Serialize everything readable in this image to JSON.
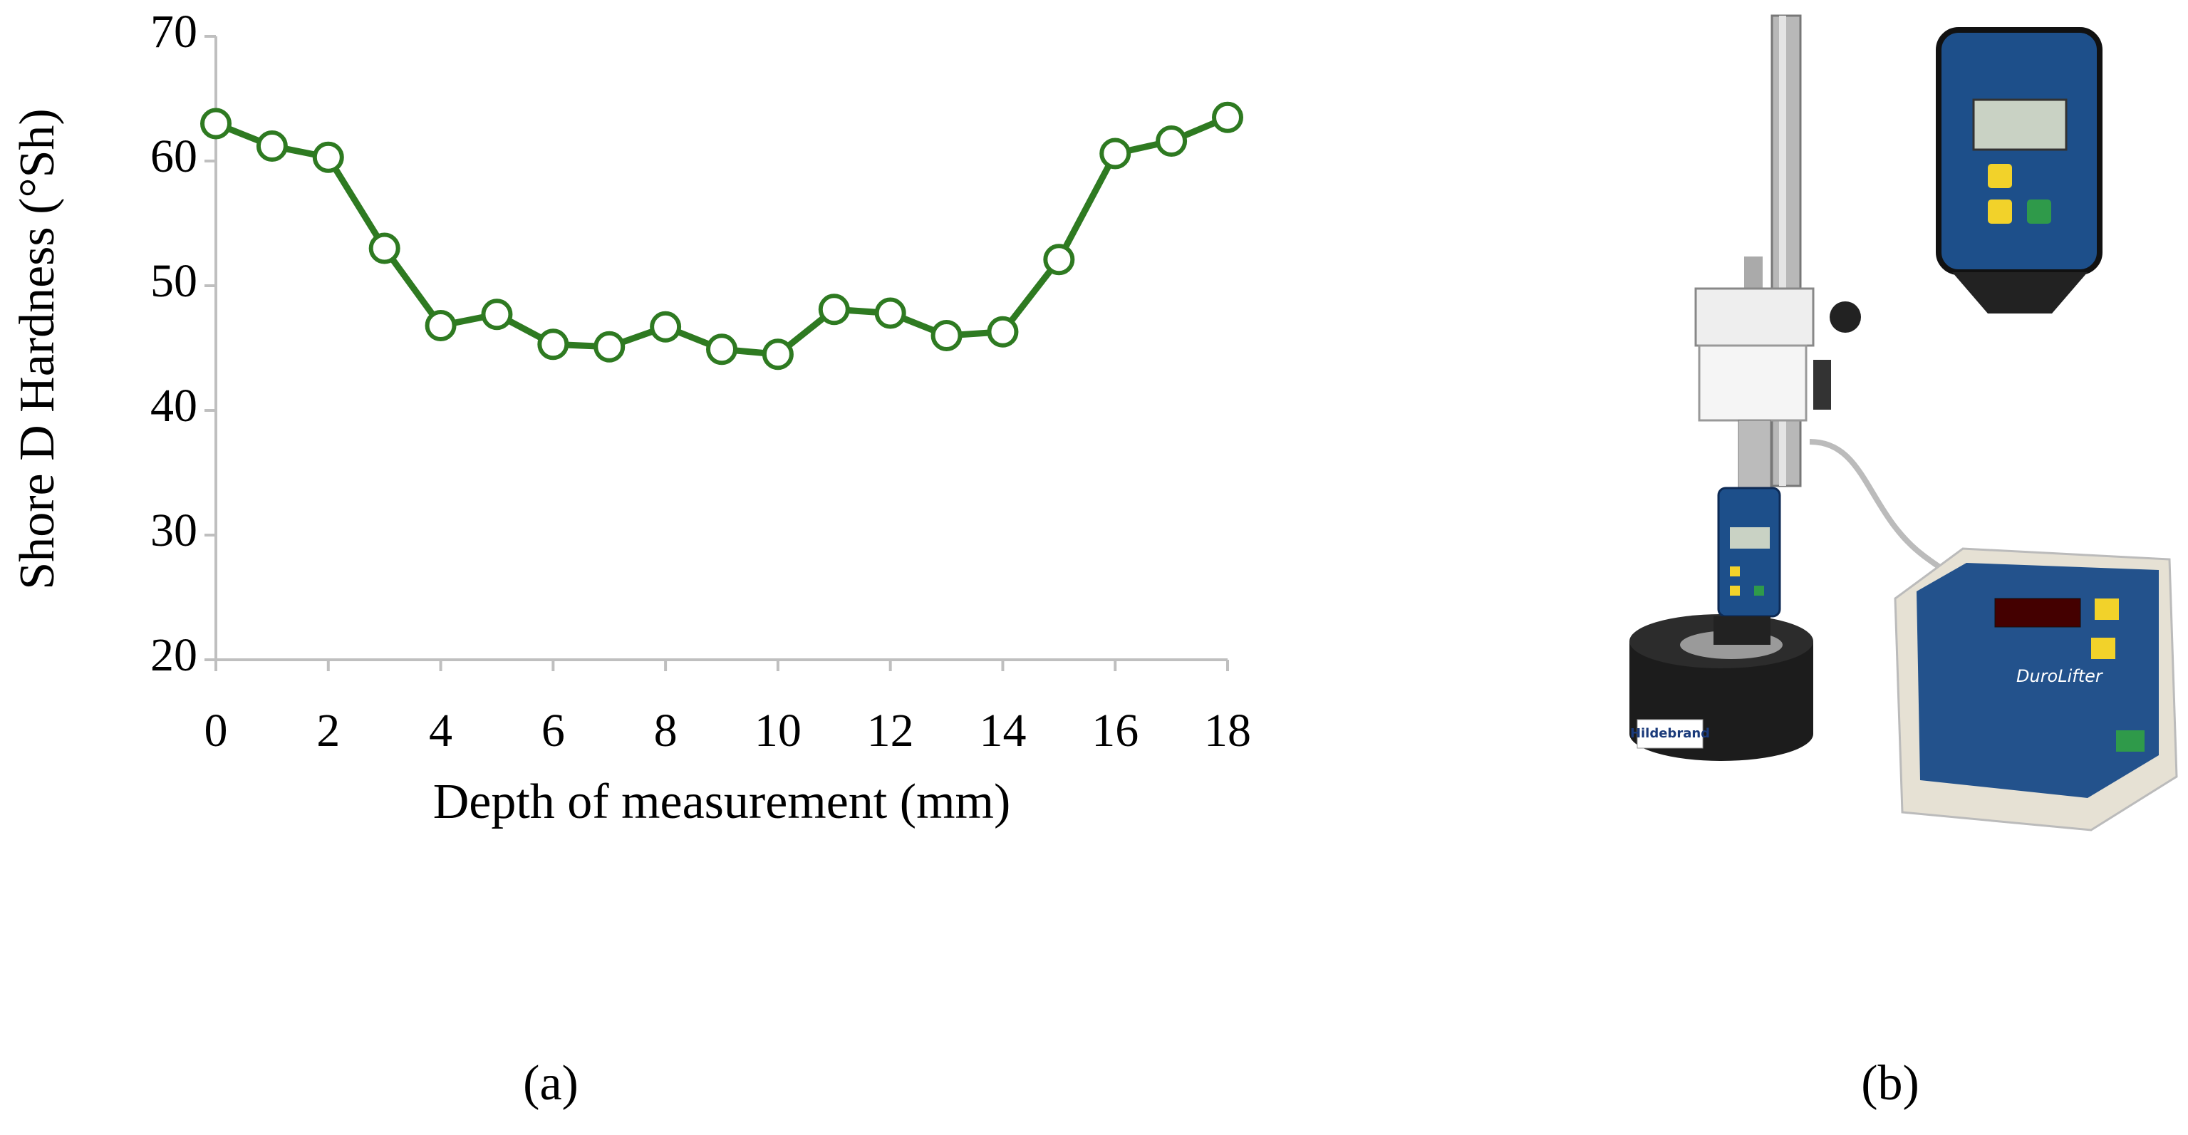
{
  "chart_data": {
    "type": "line",
    "x_label": "Depth of measurement (mm)",
    "y_label": "Shore D Hardness (°Sh)",
    "x": [
      0,
      1,
      2,
      3,
      4,
      5,
      6,
      7,
      8,
      9,
      10,
      11,
      12,
      13,
      14,
      15,
      16,
      17,
      18
    ],
    "series": [
      {
        "color": "#2e7a21",
        "values": [
          63,
          61.2,
          60.3,
          53,
          46.8,
          47.7,
          45.3,
          45.1,
          46.7,
          44.9,
          44.5,
          48.1,
          47.8,
          46,
          46.3,
          52.1,
          60.6,
          61.6,
          63.5
        ]
      }
    ],
    "xlim": [
      0,
      18
    ],
    "xticks": [
      0,
      2,
      4,
      6,
      8,
      10,
      12,
      14,
      16,
      18
    ],
    "ylim": [
      20,
      70
    ],
    "yticks": [
      20,
      30,
      40,
      50,
      60,
      70
    ],
    "marker": "hollow-circle",
    "axis_color": "#bfbfbf"
  },
  "panel_labels": [
    "(a)",
    "(b)"
  ],
  "photo": {
    "brand": "Hildebrand",
    "controller": "DuroLifter"
  }
}
